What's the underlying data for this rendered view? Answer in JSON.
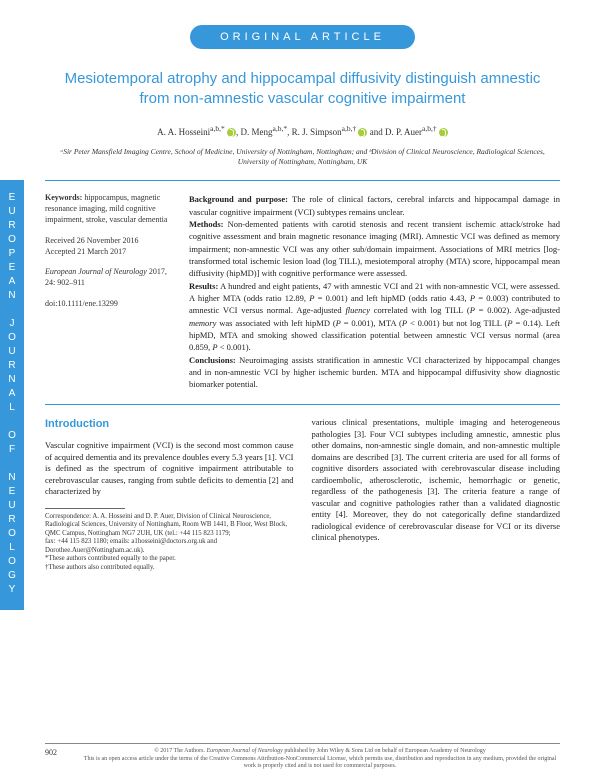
{
  "sideTab": "EUROPEAN JOURNAL OF NEUROLOGY",
  "badge": "ORIGINAL ARTICLE",
  "title": "Mesiotemporal atrophy and hippocampal diffusivity distinguish amnestic from non-amnestic vascular cognitive impairment",
  "authors": {
    "a1": "A. A. Hosseini",
    "a1sup": "a,b,*",
    "a2": "D. Meng",
    "a2sup": "a,b,*",
    "a3": "R. J. Simpson",
    "a3sup": "a,b,†",
    "a4": "D. P. Auer",
    "a4sup": "a,b,†",
    "sep": ", ",
    "and": " and "
  },
  "affiliations": "ᵃSir Peter Mansfield Imaging Centre, School of Medicine, University of Nottingham, Nottingham; and ᵇDivision of Clinical Neuroscience, Radiological Sciences, University of Nottingham, Nottingham, UK",
  "keywords": {
    "label": "Keywords:",
    "text": "hippocampus, magnetic resonance imaging, mild cognitive impairment, stroke, vascular dementia"
  },
  "dates": {
    "received": "Received 26 November 2016",
    "accepted": "Accepted 21 March 2017"
  },
  "journal": {
    "name": "European Journal of Neurology",
    "ref": " 2017, 24: 902–911",
    "doi": "doi:10.1111/ene.13299"
  },
  "abstract": {
    "bg_label": "Background and purpose:",
    "bg": " The role of clinical factors, cerebral infarcts and hippocampal damage in vascular cognitive impairment (VCI) subtypes remains unclear.",
    "methods_label": "Methods:",
    "methods": " Non-demented patients with carotid stenosis and recent transient ischemic attack/stroke had cognitive assessment and brain magnetic resonance imaging (MRI). Amnestic VCI was defined as memory impairment; non-amnestic VCI was any other sub/domain impairment. Associations of MRI metrics [log-transformed total ischemic lesion load (log TILL), mesiotemporal atrophy (MTA) score, hippocampal mean diffusivity (hipMD)] with cognitive performance were assessed.",
    "results_label": "Results:",
    "results_a": " A hundred and eight patients, 47 with amnestic VCI and 21 with non-amnestic VCI, were assessed. A higher MTA (odds ratio 12.89, ",
    "results_b": " = 0.001) and left hipMD (odds ratio 4.43, ",
    "results_c": " = 0.003) contributed to amnestic VCI versus normal. Age-adjusted ",
    "results_d": " correlated with log TILL (",
    "results_e": " = 0.002). Age-adjusted ",
    "results_f": " was associated with left hipMD (",
    "results_g": " = 0.001), MTA (",
    "results_h": " < 0.001) but not log TILL (",
    "results_i": " = 0.14). Left hipMD, MTA and smoking showed classification potential between amnestic VCI versus normal (area 0.859, ",
    "results_j": " < 0.001).",
    "concl_label": "Conclusions:",
    "concl": " Neuroimaging assists stratification in amnestic VCI characterized by hippocampal changes and in non-amnestic VCI by higher ischemic burden. MTA and hippocampal diffusivity show diagnostic biomarker potential.",
    "fluency": "fluency",
    "memory": "memory",
    "P": "P"
  },
  "intro": {
    "heading": "Introduction",
    "col1": "Vascular cognitive impairment (VCI) is the second most common cause of acquired dementia and its prevalence doubles every 5.3 years [1]. VCI is defined as the spectrum of cognitive impairment attributable to cerebrovascular causes, ranging from subtle deficits to dementia [2] and characterized by",
    "col2": "various clinical presentations, multiple imaging and heterogeneous pathologies [3]. Four VCI subtypes including amnestic, amnestic plus other domains, non-amnestic single domain, and non-amnestic multiple domains are described [3]. The current criteria are used for all forms of cognitive disorders associated with cerebrovascular disease including cardioembolic, atherosclerotic, ischemic, hemorrhagic or genetic, regardless of the pathogenesis [3]. The criteria feature a range of vascular and cognitive pathologies rather than a validated diagnostic entity [4]. Moreover, they do not categorically define standardized radiological evidence of cerebrovascular disease for VCI or its diverse clinical phenotypes."
  },
  "correspondence": {
    "line1": "Correspondence: A. A. Hosseini and D. P. Auer, Division of Clinical Neuroscience, Radiological Sciences, University of Nottingham, Room WB 1441, B Floor, West Block, QMC Campus, Nottingham NG7 2UH, UK (tel.: +44 115 823 1179;",
    "line2": "fax: +44 115 823 1180; emails: a1hosseini@doctors.org.uk and Dorothee.Auer@Nottingham.ac.uk).",
    "note1": "*These authors contributed equally to the paper.",
    "note2": "†These authors also contributed equally."
  },
  "footer": {
    "page": "902",
    "copyright1": "© 2017 The Authors. ",
    "copyright2": "European Journal of Neurology",
    "copyright3": " published by John Wiley & Sons Ltd on behalf of European Academy of Neurology",
    "copyright4": "This is an open access article under the terms of the Creative Commons Attribution-NonCommercial License, which permits use, distribution and reproduction in any medium, provided the original work is properly cited and is not used for commercial purposes."
  },
  "colors": {
    "accent": "#3698db",
    "orcid": "#a6ce39"
  }
}
